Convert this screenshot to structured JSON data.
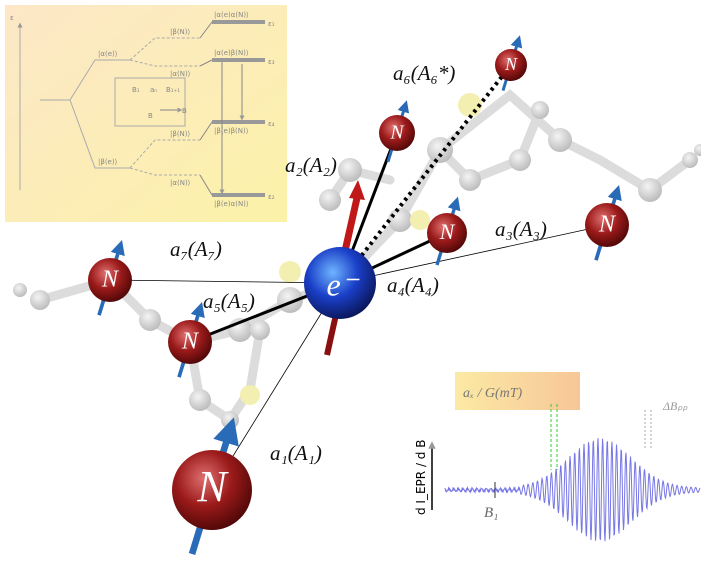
{
  "hyperfine_labels": [
    "a₆(A₆*)",
    "a₂(A₂)",
    "a₃(A₃)",
    "a₇(A₇)",
    "a₅(A₅)",
    "a₄(A₄)",
    "a₁(A₁)"
  ],
  "electron": "e⁻",
  "nuclei": [
    "N",
    "N",
    "N",
    "N",
    "N",
    "N",
    "N"
  ],
  "energy_inset": {
    "axis": "ε",
    "levels": [
      "ε₁",
      "ε₃",
      "ε₄",
      "ε₂"
    ],
    "pair_states": [
      "|α(e)α(N)⟩",
      "|α(e)β(N)⟩",
      "|β(e)β(N)⟩",
      "|β(e)α(N)⟩"
    ],
    "electron_states": [
      "|α(e)⟩",
      "|β(e)⟩"
    ],
    "nuclear_states": [
      "|β(N)⟩",
      "|α(N)⟩",
      "|β(N)⟩",
      "|α(N)⟩"
    ],
    "zeeman": {
      "left": "B₁",
      "coupling": "aₙ",
      "right": "B₁₊₁",
      "field": "B",
      "arrow_label": "B"
    }
  },
  "spectrum": {
    "coupling_label": "aₓ / G(mT)",
    "linewidth_label": "ΔBₚₚ",
    "y_axis": "d I_EPR / d B",
    "field_label": "B₁"
  }
}
